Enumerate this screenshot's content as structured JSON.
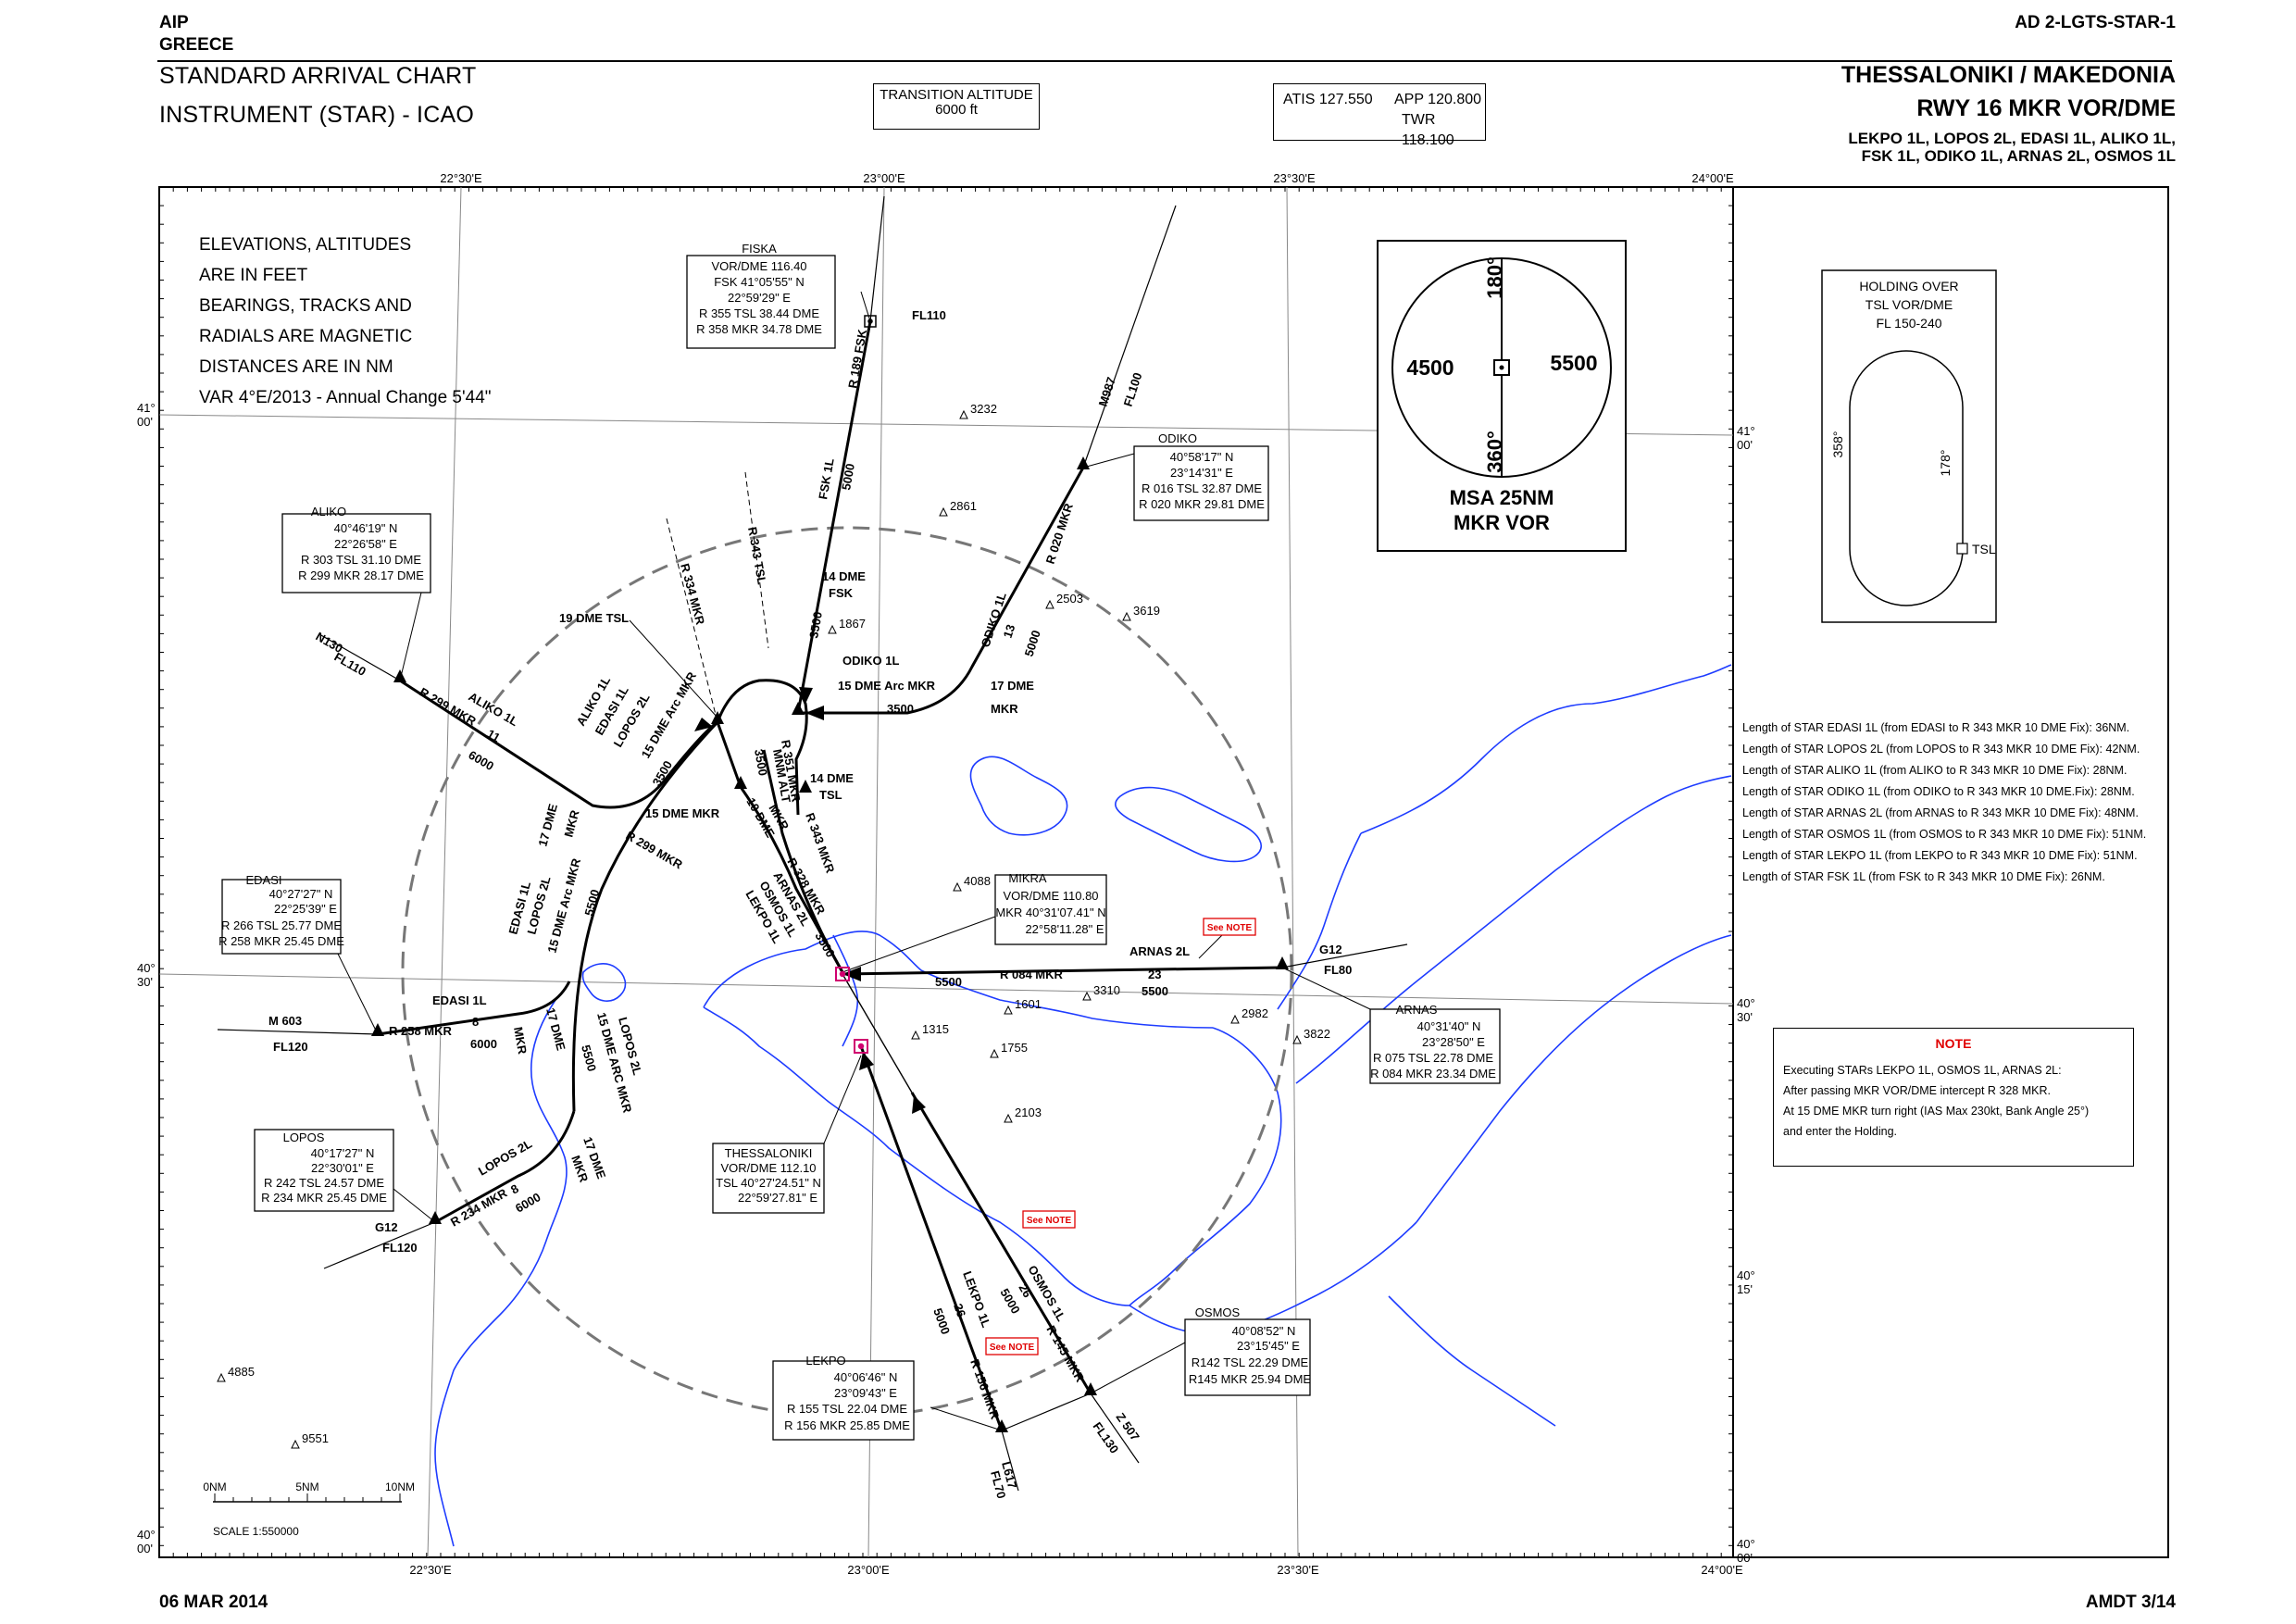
{
  "header": {
    "aip": "AIP",
    "country": "GREECE",
    "chart_id": "AD 2-LGTS-STAR-1",
    "title_line1": "STANDARD ARRIVAL CHART",
    "title_line2": "INSTRUMENT (STAR) - ICAO",
    "airport": "THESSALONIKI / MAKEDONIA",
    "runway": "RWY 16 MKR VOR/DME",
    "procedures_line1": "LEKPO 1L, LOPOS 2L, EDASI 1L, ALIKO 1L,",
    "procedures_line2": "FSK 1L, ODIKO 1L,  ARNAS 2L, OSMOS 1L"
  },
  "transition": {
    "title": "TRANSITION ALTITUDE",
    "value": "6000 ft"
  },
  "frequencies": {
    "atis": "ATIS  127.550",
    "app": "APP  120.800",
    "twr": "TWR  118.100"
  },
  "footer": {
    "date": "06 MAR 2014",
    "amendment": "AMDT 3/14"
  },
  "grid": {
    "lon_22_30": "22°30'E",
    "lon_23_00": "23°00'E",
    "lon_23_30": "23°30'E",
    "lon_24_00": "24°00'E",
    "lat_41_00": "41°",
    "lat_41_00_min": "00'",
    "lat_40_30": "40°",
    "lat_40_30_min": "30'",
    "lat_40_15": "40°",
    "lat_40_15_min": "15'",
    "lat_40_00": "40°",
    "lat_40_00_min": "00'"
  },
  "info_text": [
    "ELEVATIONS, ALTITUDES",
    "ARE IN FEET",
    "BEARINGS, TRACKS AND",
    "RADIALS ARE MAGNETIC",
    "DISTANCES ARE IN NM",
    "VAR 4°E/2013 - Annual Change 5'44\""
  ],
  "msa": {
    "north_deg": "180°",
    "south_deg": "360°",
    "west_alt": "4500",
    "east_alt": "5500",
    "caption1": "MSA 25NM",
    "caption2": "MKR VOR"
  },
  "holding": {
    "title1": "HOLDING OVER",
    "title2": "TSL VOR/DME",
    "title3": "FL 150-240",
    "outbound": "358°",
    "inbound": "178°",
    "fix": "TSL"
  },
  "star_lengths": [
    "Length of STAR EDASI 1L (from EDASI to R 343 MKR 10 DME Fix): 36NM.",
    "Length of STAR LOPOS 2L (from LOPOS to R 343 MKR 10 DME Fix): 42NM.",
    "Length of STAR ALIKO 1L (from ALIKO to R 343 MKR 10 DME Fix): 28NM.",
    "Length of STAR ODIKO 1L (from ODIKO to R 343 MKR 10 DME.Fix): 28NM.",
    "Length of STAR ARNAS 2L (from ARNAS to R 343 MKR 10 DME Fix): 48NM.",
    "Length of STAR OSMOS 1L (from OSMOS to R 343 MKR 10 DME Fix): 51NM.",
    "Length of STAR LEKPO 1L (from LEKPO to R 343 MKR 10 DME Fix): 51NM.",
    "Length of STAR FSK 1L (from FSK to R 343 MKR 10 DME Fix): 26NM."
  ],
  "note": {
    "title": "NOTE",
    "line1": "Executing STARs LEKPO 1L, OSMOS 1L, ARNAS 2L:",
    "line2": "After passing MKR VOR/DME intercept R 328 MKR.",
    "line3": "At 15 DME MKR turn right (IAS Max 230kt, Bank Angle 25°)",
    "line4": "and enter the Holding."
  },
  "see_note": "See NOTE",
  "fixes": {
    "fiska": {
      "name": "FISKA",
      "l1": "VOR/DME 116.40",
      "l2": "FSK 41°05'55\" N",
      "l3": "22°59'29\" E",
      "l4": "R 355 TSL 38.44 DME",
      "l5": "R 358 MKR 34.78 DME"
    },
    "odiko": {
      "name": "ODIKO",
      "l1": "40°58'17\" N",
      "l2": "23°14'31\" E",
      "l3": "R 016 TSL 32.87 DME",
      "l4": "R 020 MKR 29.81 DME"
    },
    "aliko": {
      "name": "ALIKO",
      "l1": "40°46'19\" N",
      "l2": "22°26'58\" E",
      "l3": "R 303 TSL 31.10 DME",
      "l4": "R 299 MKR 28.17 DME"
    },
    "edasi": {
      "name": "EDASI",
      "l1": "40°27'27\" N",
      "l2": "22°25'39\" E",
      "l3": "R 266 TSL 25.77 DME",
      "l4": "R 258 MKR 25.45 DME"
    },
    "lopos": {
      "name": "LOPOS",
      "l1": "40°17'27\" N",
      "l2": "22°30'01\" E",
      "l3": "R 242 TSL 24.57 DME",
      "l4": "R 234 MKR 25.45 DME"
    },
    "mikra": {
      "name": "MIKRA",
      "l1": "VOR/DME 110.80",
      "l2": "MKR 40°31'07.41\" N",
      "l3": "22°58'11.28\" E"
    },
    "thessaloniki": {
      "name": "THESSALONIKI",
      "l1": "VOR/DME 112.10",
      "l2": "TSL 40°27'24.51\" N",
      "l3": "22°59'27.81\" E"
    },
    "arnas": {
      "name": "ARNAS",
      "l1": "40°31'40\" N",
      "l2": "23°28'50\" E",
      "l3": "R 075 TSL 22.78 DME",
      "l4": "R 084 MKR 23.34 DME"
    },
    "osmos": {
      "name": "OSMOS",
      "l1": "40°08'52\" N",
      "l2": "23°15'45\" E",
      "l3": "R142 TSL 22.29 DME",
      "l4": "R145 MKR 25.94 DME"
    },
    "lekpo": {
      "name": "LEKPO",
      "l1": "40°06'46\" N",
      "l2": "23°09'43\" E",
      "l3": "R 155 TSL 22.04 DME",
      "l4": "R 156 MKR 25.85 DME"
    }
  },
  "route_labels": {
    "fl110_fsk": "FL110",
    "r189_fsk": "R 189 FSK",
    "fsk_1l": "FSK 1L",
    "alt_5000_fsk": "5000",
    "r343_tsl": "R 343 TSL",
    "dme14_fsk": "14 DME",
    "fsk_small": "FSK",
    "alt_3500_fsk": "3500",
    "m987": "M987",
    "fl100": "FL100",
    "r020_mkr": "R 020 MKR",
    "odiko_1l": "ODIKO 1L",
    "dist_13": "13",
    "alt_5000_odk": "5000",
    "dme17": "17 DME",
    "mkr_small": "MKR",
    "odiko_1l_b": "ODIKO 1L",
    "arc15_mkr": "15 DME Arc MKR",
    "alt_3500_arc": "3500",
    "r351_mkr": "R 351 MKR",
    "min_alt": "MNM ALT",
    "alt_3500_min": "3500",
    "dme14_tsl": "14 DME",
    "tsl_small": "TSL",
    "dme10": "10 DME",
    "mkr_small2": "MKR",
    "r343_mkr": "R 343 MKR",
    "r334_mkr": "R 334 MKR",
    "dme19_tsl": "19 DME TSL",
    "n130": "N130",
    "fl110_aliko": "FL110",
    "r299_mkr": "R 299 MKR",
    "aliko_1l": "ALIKO 1L",
    "dist_11": "11",
    "alt_6000_al": "6000",
    "aliko_group1": "ALIKO 1L",
    "aliko_group2": "EDASI 1L",
    "aliko_group3": "LOPOS 2L",
    "arc15_mkr_b": "15 DME Arc MKR",
    "alt_3500_g": "3500",
    "dme15_mkr": "15 DME MKR",
    "r299_mkr_b": "R 299 MKR",
    "dme17_b": "17 DME",
    "mkr_small3": "MKR",
    "edasi_1l": "EDASI 1L",
    "lopos_2l": "LOPOS 2L",
    "arc15_mkr_c": "15 DME Arc MKR",
    "alt_5500": "5500",
    "m603": "M 603",
    "fl120": "FL120",
    "edasi_1l_b": "EDASI 1L",
    "r258_mkr": "R 258 MKR",
    "dist_8": "8",
    "alt_6000_ed": "6000",
    "dme17_c": "17 DME",
    "mkr_small4": "MKR",
    "alt_5500_b": "5500",
    "lopos_2l_b": "LOPOS 2L",
    "arc15_mkr_d": "15 DME ARC MKR",
    "g12": "G12",
    "fl120_b": "FL120",
    "r234_mkr": "R 234 MKR",
    "lopos_2l_c": "LOPOS 2L",
    "dist_8b": "8",
    "alt_6000_lp": "6000",
    "dme17_d": "17 DME",
    "mkr_small5": "MKR",
    "r328_mkr": "R 328 MKR",
    "arnas_2l": "ARNAS 2L",
    "osmos_1l": "OSMOS 1L",
    "lekpo_1l": "LEKPO 1L",
    "alt_3500_r": "3500",
    "r084_mkr": "R 084 MKR",
    "alt_5500_ar": "5500",
    "arnas_2l_b": "ARNAS 2L",
    "dist_23": "23",
    "alt_5500_ar2": "5500",
    "g12_b": "G12",
    "fl80": "FL80",
    "lekpo_1l_b": "LEKPO 1L",
    "dist_26": "26",
    "alt_5000_lk": "5000",
    "r156_mkr": "R 156 MKR",
    "osmos_1l_b": "OSMOS 1L",
    "dist_26b": "26",
    "alt_5000_os": "5000",
    "r145_mkr": "R 145 MKR",
    "l617": "L617",
    "fl70": "FL70",
    "z507": "Z 507",
    "fl130": "FL130"
  },
  "spot_heights": [
    "3232",
    "2861",
    "2503",
    "3619",
    "1867",
    "4088",
    "1601",
    "3310",
    "1315",
    "1755",
    "2103",
    "2982",
    "3822",
    "4885",
    "9551"
  ],
  "scale": {
    "nm0": "0NM",
    "nm5": "5NM",
    "nm10": "10NM",
    "ratio": "SCALE 1:550000"
  }
}
